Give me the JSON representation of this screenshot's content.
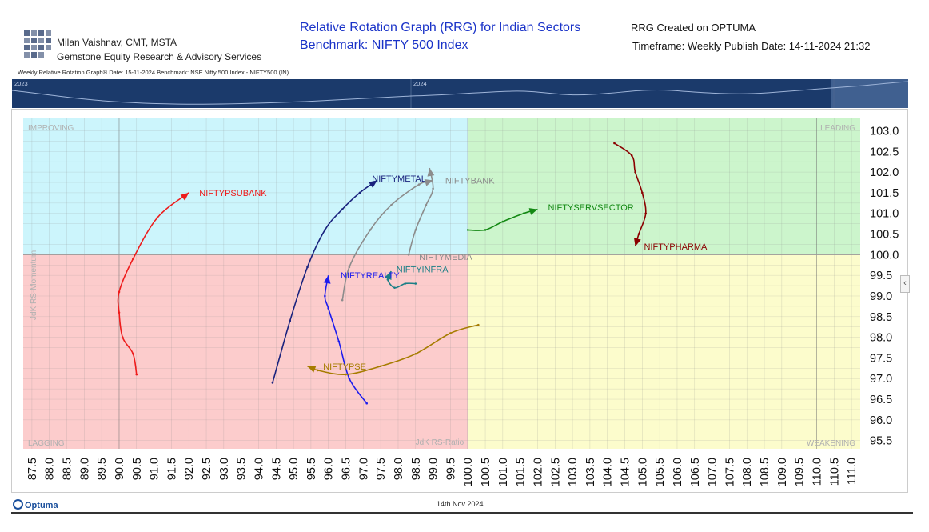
{
  "header": {
    "author": "Milan Vaishnav, CMT, MSTA",
    "company": "Gemstone Equity Research & Advisory Services",
    "title_line1": "Relative Rotation Graph (RRG) for Indian Sectors",
    "title_line2": "Benchmark: NIFTY 500 Index",
    "created": "RRG Created on OPTUMA",
    "timeframe": "Timeframe: Weekly  Publish Date: 14-11-2024 21:32",
    "sub_header": "Weekly Relative Rotation Graph®   Date: 15-11-2024  Benchmark: NSE Nifty 500 Index - NIFTY500 (IN)"
  },
  "navigator": {
    "labels": [
      "2023",
      "2024"
    ]
  },
  "footer": {
    "date": "14th Nov 2024",
    "brand": "Optuma"
  },
  "colors": {
    "improving": "#ccf5fc",
    "leading": "#ccf5cc",
    "weakening": "#fcfccc",
    "lagging": "#fccccc",
    "navigator_bg": "#1b3a6b"
  },
  "chart_data": {
    "type": "scatter",
    "subtype": "relative-rotation-graph",
    "xlabel": "JdK RS-Ratio",
    "ylabel": "JdK RS-Momentum",
    "xlim": [
      87.25,
      111.25
    ],
    "ylim": [
      95.3,
      103.3
    ],
    "center": [
      100,
      100
    ],
    "grid": true,
    "x_ticks": [
      87.5,
      88.0,
      88.5,
      89.0,
      89.5,
      90.0,
      90.5,
      91.0,
      91.5,
      92.0,
      92.5,
      93.0,
      93.5,
      94.0,
      94.5,
      95.0,
      95.5,
      96.0,
      96.5,
      97.0,
      97.5,
      98.0,
      98.5,
      99.0,
      99.5,
      100.0,
      100.5,
      101.0,
      101.5,
      102.0,
      102.5,
      103.0,
      103.5,
      104.0,
      104.5,
      105.0,
      105.5,
      106.0,
      106.5,
      107.0,
      107.5,
      108.0,
      108.5,
      109.0,
      109.5,
      110.0,
      110.5,
      111.0
    ],
    "x_tick_labels": [
      "87.5",
      "88.0",
      "88.5",
      "89.0",
      "89.5",
      "90.0",
      "90.5",
      "91.0",
      "91.5",
      "92.0",
      "92.5",
      "93.0",
      "93.5",
      "94.0",
      "94.5",
      "95.0",
      "95.5",
      "96.0",
      "96.5",
      "97.0",
      "97.5",
      "98.0",
      "98.5",
      "99.0",
      "99.5",
      "100.0",
      "100.5",
      "101.0",
      "101.5",
      "102.0",
      "102.5",
      "103.0",
      "103.5",
      "104.0",
      "104.5",
      "105.0",
      "105.5",
      "106.0",
      "106.5",
      "107.0",
      "107.5",
      "108.0",
      "108.5",
      "109.0",
      "109.5",
      "110.0",
      "110.5",
      "111.0"
    ],
    "y_ticks": [
      95.5,
      96.0,
      96.5,
      97.0,
      97.5,
      98.0,
      98.5,
      99.0,
      99.5,
      100.0,
      100.5,
      101.0,
      101.5,
      102.0,
      102.5,
      103.0
    ],
    "y_tick_labels": [
      "95.5",
      "96.0",
      "96.5",
      "97.0",
      "97.5",
      "98.0",
      "98.5",
      "99.0",
      "99.5",
      "100.0",
      "100.5",
      "101.0",
      "101.5",
      "102.0",
      "102.5",
      "103.0"
    ],
    "quadrants": [
      "IMPROVING",
      "LEADING",
      "WEAKENING",
      "LAGGING"
    ],
    "series": [
      {
        "name": "NIFTYPSUBANK",
        "color": "#ee1c1c",
        "points": [
          [
            90.5,
            97.1
          ],
          [
            90.4,
            97.6
          ],
          [
            90.1,
            98.0
          ],
          [
            90.0,
            98.6
          ],
          [
            90.0,
            99.1
          ],
          [
            90.4,
            99.9
          ],
          [
            91.1,
            100.9
          ],
          [
            92.0,
            101.5
          ]
        ]
      },
      {
        "name": "NIFTYMETAL",
        "color": "#1a237e",
        "points": [
          [
            94.4,
            96.9
          ],
          [
            94.9,
            98.4
          ],
          [
            95.4,
            99.7
          ],
          [
            95.9,
            100.6
          ],
          [
            96.4,
            101.1
          ],
          [
            96.9,
            101.5
          ],
          [
            97.4,
            101.8
          ]
        ]
      },
      {
        "name": "NIFTYBANK",
        "color": "#8c8c8c",
        "points": [
          [
            98.3,
            100.0
          ],
          [
            98.5,
            100.6
          ],
          [
            98.8,
            101.2
          ],
          [
            99.0,
            101.6
          ],
          [
            98.9,
            102.1
          ]
        ]
      },
      {
        "name": "NIFTYMEDIA",
        "color": "#8c8c8c",
        "points": [
          [
            96.4,
            98.9
          ],
          [
            96.6,
            99.7
          ],
          [
            97.2,
            100.6
          ],
          [
            97.8,
            101.2
          ],
          [
            98.6,
            101.7
          ],
          [
            99.0,
            101.8
          ]
        ]
      },
      {
        "name": "NIFTYINFRA",
        "color": "#1a7f86",
        "points": [
          [
            98.5,
            99.3
          ],
          [
            98.2,
            99.3
          ],
          [
            97.9,
            99.2
          ],
          [
            97.7,
            99.4
          ],
          [
            97.8,
            99.6
          ]
        ]
      },
      {
        "name": "NIFTYREALTY",
        "color": "#1c1cee",
        "points": [
          [
            97.1,
            96.4
          ],
          [
            96.6,
            97.0
          ],
          [
            96.3,
            97.9
          ],
          [
            96.0,
            98.7
          ],
          [
            95.9,
            99.0
          ],
          [
            96.0,
            99.5
          ]
        ]
      },
      {
        "name": "NIFTYPSE",
        "color": "#a67c00",
        "points": [
          [
            100.3,
            98.3
          ],
          [
            99.5,
            98.1
          ],
          [
            98.5,
            97.6
          ],
          [
            97.5,
            97.3
          ],
          [
            96.5,
            97.1
          ],
          [
            95.7,
            97.2
          ],
          [
            95.4,
            97.3
          ]
        ]
      },
      {
        "name": "NIFTYSERVSECTOR",
        "color": "#138813",
        "points": [
          [
            100.0,
            100.6
          ],
          [
            100.5,
            100.6
          ],
          [
            101.0,
            100.8
          ],
          [
            101.6,
            101.0
          ],
          [
            102.0,
            101.1
          ]
        ]
      },
      {
        "name": "NIFTYPHARMA",
        "color": "#8b0000",
        "points": [
          [
            104.2,
            102.7
          ],
          [
            104.7,
            102.4
          ],
          [
            104.8,
            102.0
          ],
          [
            105.0,
            101.5
          ],
          [
            105.1,
            101.0
          ],
          [
            104.9,
            100.5
          ],
          [
            104.8,
            100.2
          ]
        ]
      }
    ]
  }
}
